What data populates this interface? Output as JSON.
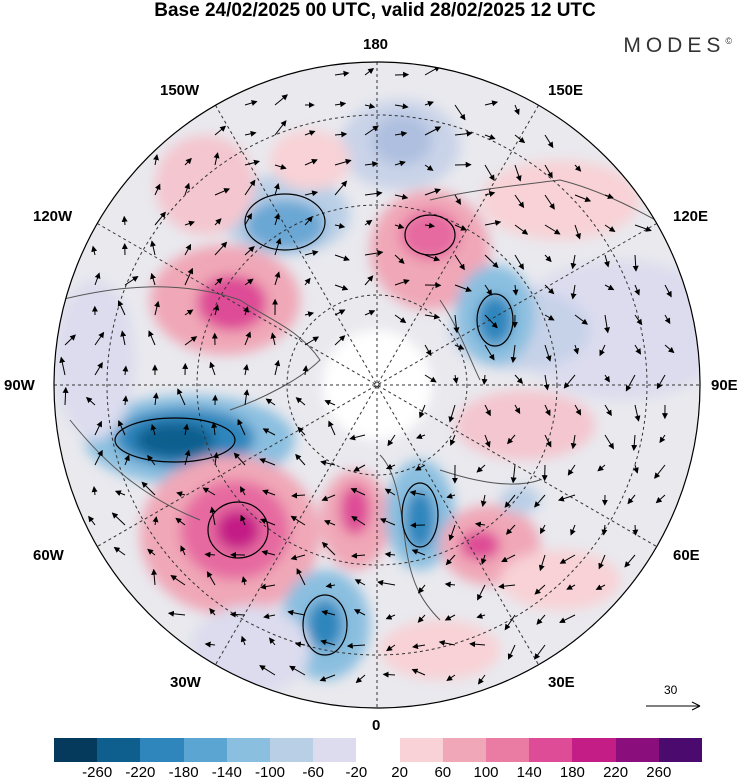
{
  "title": "Base 24/02/2025 00 UTC, valid 28/02/2025 12 UTC",
  "brand": "MODES",
  "brand_mark": "©",
  "longitude_labels": {
    "top": "180",
    "top_left": "150W",
    "top_right": "150E",
    "upper_left": "120W",
    "upper_right": "120E",
    "left": "90W",
    "right": "90E",
    "lower_left": "60W",
    "lower_right": "60E",
    "bottom_left": "30W",
    "bottom_right": "30E",
    "bottom": "0"
  },
  "vector_scale_label": "30",
  "colorbar": {
    "colors": [
      "#063a5c",
      "#0e5e8e",
      "#2f86bd",
      "#5aa5d2",
      "#8bbfe0",
      "#b9cfe6",
      "#dcdcee",
      "#ffffff",
      "#f8d2d6",
      "#f0a7b7",
      "#ea7ba3",
      "#de4b96",
      "#c41e86",
      "#8a0f7c",
      "#4a0a6e"
    ],
    "tick_labels": [
      "-260",
      "-220",
      "-180",
      "-140",
      "-100",
      "-60",
      "-20",
      "20",
      "60",
      "100",
      "140",
      "180",
      "220",
      "260"
    ]
  },
  "anomaly_features": [
    {
      "sign": "negative",
      "color": "#0e5e8e",
      "ref": "over 90W-60W band, strong low"
    },
    {
      "sign": "positive",
      "color": "#c41e86",
      "ref": "near 60W-45W, strong high"
    }
  ]
}
